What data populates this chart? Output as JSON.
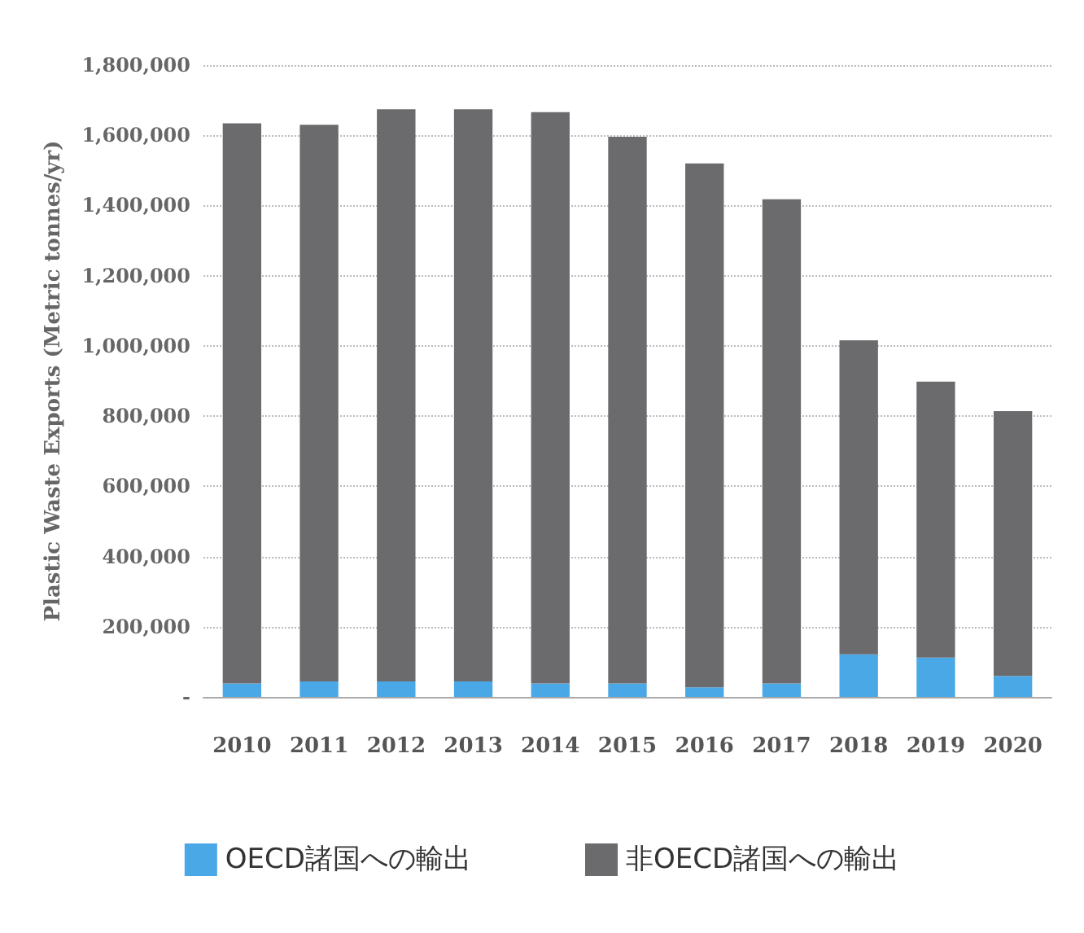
{
  "chart_data": {
    "type": "bar",
    "stacked": true,
    "ylabel": "Plastic Waste Exports (Metric tonnes/yr)",
    "categories": [
      "2010",
      "2011",
      "2012",
      "2013",
      "2014",
      "2015",
      "2016",
      "2017",
      "2018",
      "2019",
      "2020"
    ],
    "series": [
      {
        "name": "OECD諸国への輸出",
        "color": "#4aa8e6",
        "values": [
          38000,
          44000,
          44000,
          44000,
          38000,
          38000,
          27000,
          38000,
          121000,
          112000,
          60000
        ]
      },
      {
        "name": "非OECD諸国への輸出",
        "color": "#6b6b6e",
        "values": [
          1596000,
          1586000,
          1630000,
          1630000,
          1628000,
          1558000,
          1493000,
          1380000,
          895000,
          786000,
          754000
        ]
      }
    ],
    "ylim": [
      0,
      1800000
    ],
    "yticks": [
      {
        "value": 0,
        "label": "-"
      },
      {
        "value": 200000,
        "label": "200,000"
      },
      {
        "value": 400000,
        "label": "400,000"
      },
      {
        "value": 600000,
        "label": "600,000"
      },
      {
        "value": 800000,
        "label": "800,000"
      },
      {
        "value": 1000000,
        "label": "1,000,000"
      },
      {
        "value": 1200000,
        "label": "1,200,000"
      },
      {
        "value": 1400000,
        "label": "1,400,000"
      },
      {
        "value": 1600000,
        "label": "1,600,000"
      },
      {
        "value": 1800000,
        "label": "1,800,000"
      }
    ],
    "grid": "y",
    "legend": "bottom"
  }
}
